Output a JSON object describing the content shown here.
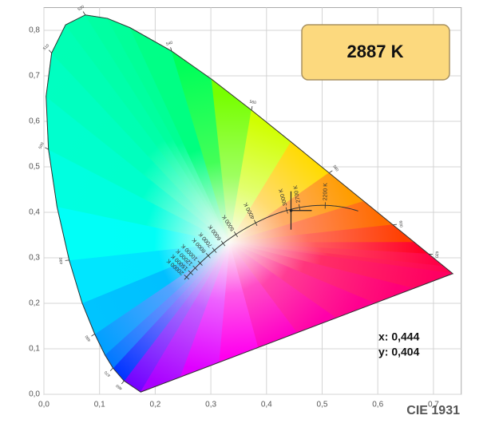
{
  "chart_data": {
    "type": "chromaticity",
    "title": "CIE 1931",
    "cct_label": "2887 K",
    "xlim": [
      0,
      0.75
    ],
    "ylim": [
      0,
      0.85
    ],
    "xticks": [
      {
        "value": 0,
        "label": "0,0"
      },
      {
        "value": 0.1,
        "label": "0,1"
      },
      {
        "value": 0.2,
        "label": "0,2"
      },
      {
        "value": 0.3,
        "label": "0,3"
      },
      {
        "value": 0.4,
        "label": "0,4"
      },
      {
        "value": 0.5,
        "label": "0,5"
      },
      {
        "value": 0.6,
        "label": "0,6"
      },
      {
        "value": 0.7,
        "label": "0,7"
      }
    ],
    "yticks": [
      {
        "value": 0,
        "label": "0,0"
      },
      {
        "value": 0.1,
        "label": "0,1"
      },
      {
        "value": 0.2,
        "label": "0,2"
      },
      {
        "value": 0.3,
        "label": "0,3"
      },
      {
        "value": 0.4,
        "label": "0,4"
      },
      {
        "value": 0.5,
        "label": "0,5"
      },
      {
        "value": 0.6,
        "label": "0,6"
      },
      {
        "value": 0.7,
        "label": "0,7"
      },
      {
        "value": 0.8,
        "label": "0,8"
      }
    ],
    "grid": true,
    "spectral_locus": {
      "x": [
        0.1741,
        0.144,
        0.1241,
        0.1096,
        0.0913,
        0.0687,
        0.0454,
        0.0235,
        0.0082,
        0.0039,
        0.0139,
        0.0389,
        0.0743,
        0.1142,
        0.1547,
        0.2296,
        0.3016,
        0.3731,
        0.4441,
        0.5125,
        0.5752,
        0.627,
        0.6658,
        0.6915,
        0.719,
        0.7347
      ],
      "y": [
        0.005,
        0.0297,
        0.0578,
        0.0868,
        0.1327,
        0.2007,
        0.295,
        0.4127,
        0.5384,
        0.6548,
        0.7502,
        0.812,
        0.8338,
        0.8262,
        0.8059,
        0.7543,
        0.6923,
        0.6245,
        0.5547,
        0.4866,
        0.4242,
        0.3725,
        0.334,
        0.3083,
        0.2809,
        0.2653
      ],
      "labels": [
        null,
        "460",
        "470",
        null,
        "480",
        null,
        "490",
        null,
        "500",
        null,
        "510",
        null,
        "520",
        null,
        null,
        "540",
        null,
        "560",
        null,
        "580",
        null,
        "600",
        null,
        "620",
        null,
        null
      ]
    },
    "planckian_ticks": [
      {
        "value": 2200,
        "label": "2200 K"
      },
      {
        "value": 2700,
        "label": "2700 K"
      },
      {
        "value": 3000,
        "label": "3000 K"
      },
      {
        "value": 4000,
        "label": "4000 K"
      },
      {
        "value": 5000,
        "label": "5000 K"
      },
      {
        "value": 6000,
        "label": "6000 K"
      },
      {
        "value": 7000,
        "label": "7000 K"
      },
      {
        "value": 8000,
        "label": "8000 K"
      },
      {
        "value": 10000,
        "label": "10000 K"
      },
      {
        "value": 12000,
        "label": "12000 K"
      },
      {
        "value": 15000,
        "label": "15000 K"
      },
      {
        "value": 20000,
        "label": "20000 K"
      }
    ],
    "point": {
      "x": 0.444,
      "y": 0.404,
      "x_label": "x: 0,444",
      "y_label": "y: 0,404"
    }
  }
}
